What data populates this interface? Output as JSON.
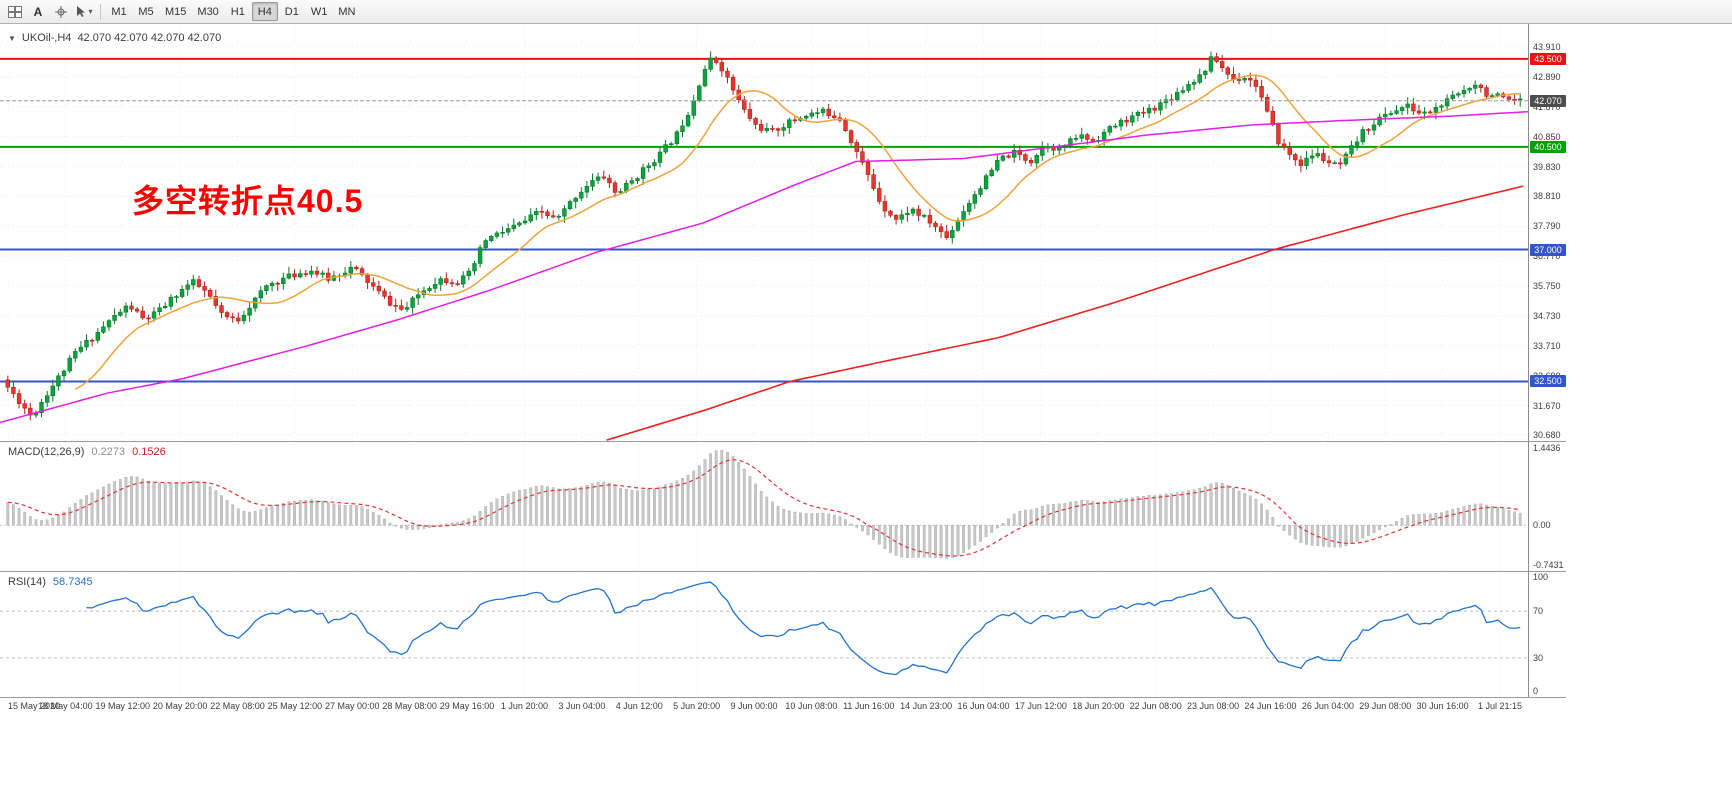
{
  "toolbar": {
    "text_tool_label": "A",
    "timeframes": [
      "M1",
      "M5",
      "M15",
      "M30",
      "H1",
      "H4",
      "D1",
      "W1",
      "MN"
    ],
    "active_timeframe": "H4"
  },
  "chart": {
    "title_arrow": "▼",
    "title_symbol": "UKOil-,H4",
    "title_ohlc": "42.070 42.070 42.070 42.070",
    "annotation": "多空转折点40.5"
  },
  "macd": {
    "label": "MACD(12,26,9)",
    "value_main": "0.2273",
    "value_signal": "0.1526",
    "axis": [
      "1.4436",
      "0.00",
      "-0.7431"
    ]
  },
  "rsi": {
    "label": "RSI(14)",
    "value": "58.7345",
    "axis": [
      "100",
      "70",
      "30",
      "0"
    ],
    "levels": [
      70,
      30
    ]
  },
  "chart_data": {
    "type": "candlestick",
    "symbol": "UKOil-",
    "timeframe": "H4",
    "candle_count": 270,
    "price_range": {
      "max": 44.69,
      "min": 30.47
    },
    "price_ticks": [
      "43.910",
      "42.890",
      "41.870",
      "40.850",
      "39.830",
      "38.810",
      "37.790",
      "36.770",
      "35.750",
      "34.730",
      "33.710",
      "32.690",
      "31.670",
      "30.680"
    ],
    "hlines": [
      {
        "price": 43.5,
        "label": "43.500",
        "color": "#ee1111",
        "width": 2
      },
      {
        "price": 40.5,
        "label": "40.500",
        "color": "#00a000",
        "width": 2
      },
      {
        "price": 37.0,
        "label": "37.000",
        "color": "#3355cc",
        "width": 2
      },
      {
        "price": 32.5,
        "label": "32.500",
        "color": "#3355cc",
        "width": 2
      }
    ],
    "current_price": {
      "value": 42.07,
      "label": "42.070",
      "color": "#4d4d4d"
    },
    "colors": {
      "up": "#0ca23c",
      "up_border": "#077a2b",
      "down": "#e8362d",
      "down_border": "#b2201a",
      "ma_fast": "#efa33c",
      "ma_mid": "#e41ee4",
      "ma_slow": "#ef2020",
      "macd_hist": "#c8c8c8",
      "macd_signal": "#e03636",
      "rsi_line": "#2273cf"
    },
    "close_path": [
      [
        0.0,
        32.3
      ],
      [
        0.008,
        31.8
      ],
      [
        0.016,
        31.3
      ],
      [
        0.024,
        31.95
      ],
      [
        0.033,
        32.6
      ],
      [
        0.045,
        33.5
      ],
      [
        0.06,
        34.2
      ],
      [
        0.07,
        34.7
      ],
      [
        0.08,
        35.1
      ],
      [
        0.09,
        34.6
      ],
      [
        0.1,
        34.9
      ],
      [
        0.112,
        35.5
      ],
      [
        0.122,
        35.9
      ],
      [
        0.132,
        35.5
      ],
      [
        0.142,
        34.7
      ],
      [
        0.152,
        34.6
      ],
      [
        0.162,
        35.2
      ],
      [
        0.172,
        35.8
      ],
      [
        0.187,
        36.1
      ],
      [
        0.2,
        36.3
      ],
      [
        0.212,
        36.0
      ],
      [
        0.228,
        36.4
      ],
      [
        0.24,
        35.8
      ],
      [
        0.252,
        35.2
      ],
      [
        0.262,
        34.9
      ],
      [
        0.272,
        35.5
      ],
      [
        0.285,
        36.0
      ],
      [
        0.298,
        35.9
      ],
      [
        0.306,
        36.2
      ],
      [
        0.315,
        37.3
      ],
      [
        0.327,
        37.6
      ],
      [
        0.34,
        37.9
      ],
      [
        0.352,
        38.3
      ],
      [
        0.363,
        38.0
      ],
      [
        0.375,
        38.8
      ],
      [
        0.385,
        39.3
      ],
      [
        0.395,
        39.5
      ],
      [
        0.402,
        38.9
      ],
      [
        0.412,
        39.3
      ],
      [
        0.422,
        39.8
      ],
      [
        0.432,
        40.3
      ],
      [
        0.442,
        40.9
      ],
      [
        0.452,
        41.9
      ],
      [
        0.46,
        43.1
      ],
      [
        0.466,
        43.55
      ],
      [
        0.472,
        43.2
      ],
      [
        0.478,
        42.6
      ],
      [
        0.486,
        41.8
      ],
      [
        0.495,
        41.2
      ],
      [
        0.505,
        41.0
      ],
      [
        0.515,
        41.3
      ],
      [
        0.528,
        41.6
      ],
      [
        0.54,
        41.7
      ],
      [
        0.55,
        41.5
      ],
      [
        0.558,
        40.7
      ],
      [
        0.568,
        39.6
      ],
      [
        0.578,
        38.5
      ],
      [
        0.588,
        38.0
      ],
      [
        0.597,
        38.4
      ],
      [
        0.605,
        38.1
      ],
      [
        0.613,
        37.8
      ],
      [
        0.621,
        37.4
      ],
      [
        0.629,
        38.1
      ],
      [
        0.638,
        38.8
      ],
      [
        0.648,
        39.5
      ],
      [
        0.656,
        40.1
      ],
      [
        0.666,
        40.3
      ],
      [
        0.676,
        40.0
      ],
      [
        0.686,
        40.6
      ],
      [
        0.696,
        40.4
      ],
      [
        0.708,
        40.9
      ],
      [
        0.718,
        40.7
      ],
      [
        0.728,
        41.1
      ],
      [
        0.738,
        41.4
      ],
      [
        0.748,
        41.6
      ],
      [
        0.76,
        41.9
      ],
      [
        0.772,
        42.3
      ],
      [
        0.782,
        42.7
      ],
      [
        0.79,
        43.0
      ],
      [
        0.797,
        43.6
      ],
      [
        0.803,
        43.2
      ],
      [
        0.81,
        42.8
      ],
      [
        0.818,
        42.9
      ],
      [
        0.826,
        42.6
      ],
      [
        0.833,
        41.6
      ],
      [
        0.84,
        40.7
      ],
      [
        0.848,
        40.2
      ],
      [
        0.856,
        39.9
      ],
      [
        0.864,
        40.3
      ],
      [
        0.872,
        40.0
      ],
      [
        0.88,
        39.8
      ],
      [
        0.888,
        40.4
      ],
      [
        0.896,
        41.0
      ],
      [
        0.905,
        41.4
      ],
      [
        0.915,
        41.7
      ],
      [
        0.925,
        41.9
      ],
      [
        0.935,
        41.6
      ],
      [
        0.944,
        41.8
      ],
      [
        0.953,
        42.1
      ],
      [
        0.962,
        42.4
      ],
      [
        0.97,
        42.7
      ],
      [
        0.978,
        42.3
      ],
      [
        0.986,
        42.2
      ],
      [
        0.993,
        42.0
      ],
      [
        1.0,
        42.07
      ]
    ],
    "ma_mid_path": [
      [
        0.0,
        31.1
      ],
      [
        0.07,
        32.1
      ],
      [
        0.12,
        32.6
      ],
      [
        0.2,
        33.7
      ],
      [
        0.26,
        34.6
      ],
      [
        0.32,
        35.6
      ],
      [
        0.39,
        36.9
      ],
      [
        0.46,
        37.9
      ],
      [
        0.52,
        39.2
      ],
      [
        0.56,
        40.0
      ],
      [
        0.63,
        40.1
      ],
      [
        0.69,
        40.5
      ],
      [
        0.75,
        40.9
      ],
      [
        0.82,
        41.25
      ],
      [
        0.88,
        41.4
      ],
      [
        0.95,
        41.55
      ],
      [
        1.0,
        41.7
      ]
    ],
    "ma_slow_path": [
      [
        0.397,
        30.5
      ],
      [
        0.46,
        31.5
      ],
      [
        0.517,
        32.5
      ],
      [
        0.58,
        33.2
      ],
      [
        0.654,
        34.0
      ],
      [
        0.73,
        35.2
      ],
      [
        0.834,
        37.0
      ],
      [
        0.92,
        38.2
      ],
      [
        1.0,
        39.2
      ]
    ],
    "time_labels": [
      "15 May 2020",
      "18 May 04:00",
      "19 May 12:00",
      "20 May 20:00",
      "22 May 08:00",
      "25 May 12:00",
      "27 May 00:00",
      "28 May 08:00",
      "29 May 16:00",
      "1 Jun 20:00",
      "3 Jun 04:00",
      "4 Jun 12:00",
      "5 Jun 20:00",
      "9 Jun 00:00",
      "10 Jun 08:00",
      "11 Jun 16:00",
      "14 Jun 23:00",
      "16 Jun 04:00",
      "17 Jun 12:00",
      "18 Jun 20:00",
      "22 Jun 08:00",
      "23 Jun 08:00",
      "24 Jun 16:00",
      "26 Jun 04:00",
      "29 Jun 08:00",
      "30 Jun 16:00",
      "1 Jul 21:15"
    ]
  }
}
